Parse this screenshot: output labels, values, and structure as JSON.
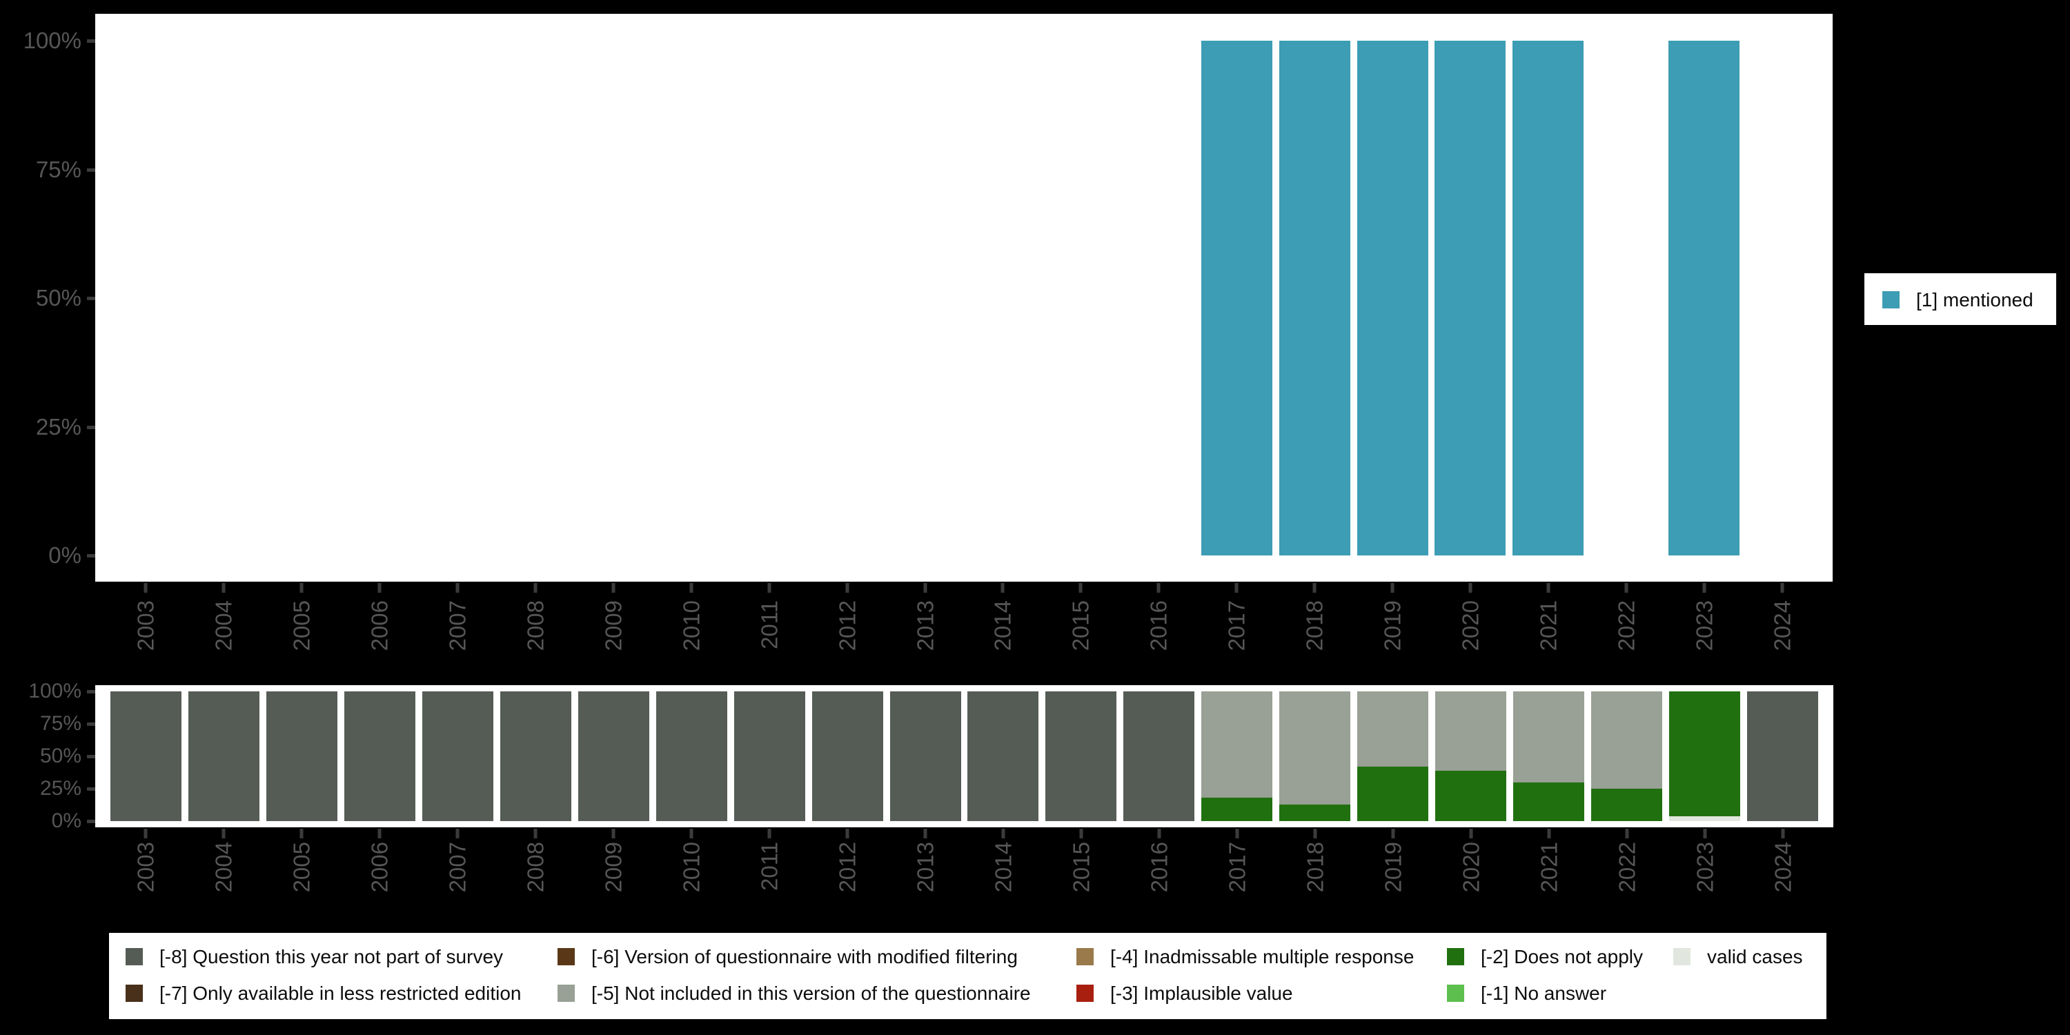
{
  "background_color": "#000000",
  "panel_color": "#ffffff",
  "axis_text_color": "#565656",
  "axis": {
    "years": [
      "2003",
      "2004",
      "2005",
      "2006",
      "2007",
      "2008",
      "2009",
      "2010",
      "2011",
      "2012",
      "2013",
      "2014",
      "2015",
      "2016",
      "2017",
      "2018",
      "2019",
      "2020",
      "2021",
      "2022",
      "2023",
      "2024"
    ],
    "y_tick_labels": [
      "0%",
      "25%",
      "50%",
      "75%",
      "100%"
    ]
  },
  "chart_data": [
    {
      "type": "bar",
      "title": "",
      "xlabel": "",
      "ylabel": "",
      "ylim": [
        0,
        100
      ],
      "grid": false,
      "legend_position": "right",
      "yticks": [
        "0%",
        "25%",
        "50%",
        "75%",
        "100%"
      ],
      "categories": [
        "2003",
        "2004",
        "2005",
        "2006",
        "2007",
        "2008",
        "2009",
        "2010",
        "2011",
        "2012",
        "2013",
        "2014",
        "2015",
        "2016",
        "2017",
        "2018",
        "2019",
        "2020",
        "2021",
        "2022",
        "2023",
        "2024"
      ],
      "series": [
        {
          "name": "[1] mentioned",
          "color": "#3c9db4",
          "values": [
            null,
            null,
            null,
            null,
            null,
            null,
            null,
            null,
            null,
            null,
            null,
            null,
            null,
            null,
            100,
            100,
            100,
            100,
            100,
            null,
            100,
            null
          ]
        }
      ]
    },
    {
      "type": "stacked-bar",
      "title": "",
      "xlabel": "",
      "ylabel": "",
      "ylim": [
        0,
        100
      ],
      "grid": false,
      "legend_position": "bottom",
      "yticks": [
        "0%",
        "25%",
        "50%",
        "75%",
        "100%"
      ],
      "categories": [
        "2003",
        "2004",
        "2005",
        "2006",
        "2007",
        "2008",
        "2009",
        "2010",
        "2011",
        "2012",
        "2013",
        "2014",
        "2015",
        "2016",
        "2017",
        "2018",
        "2019",
        "2020",
        "2021",
        "2022",
        "2023",
        "2024"
      ],
      "series": [
        {
          "name": "valid cases",
          "color": "#e1e7de",
          "values": [
            0,
            0,
            0,
            0,
            0,
            0,
            0,
            0,
            0,
            0,
            0,
            0,
            0,
            0,
            0,
            0,
            0,
            0,
            0,
            0,
            3.5,
            0
          ]
        },
        {
          "name": "[-2] Does not apply",
          "color": "#217010",
          "values": [
            0,
            0,
            0,
            0,
            0,
            0,
            0,
            0,
            0,
            0,
            0,
            0,
            0,
            0,
            18,
            13,
            42,
            39,
            30,
            25,
            96.5,
            0
          ]
        },
        {
          "name": "[-5] Not included in this version of the questionnaire",
          "color": "#99a095",
          "values": [
            0,
            0,
            0,
            0,
            0,
            0,
            0,
            0,
            0,
            0,
            0,
            0,
            0,
            0,
            82,
            87,
            58,
            61,
            70,
            75,
            0,
            0
          ]
        },
        {
          "name": "[-8] Question this year not part of survey",
          "color": "#555c55",
          "values": [
            100,
            100,
            100,
            100,
            100,
            100,
            100,
            100,
            100,
            100,
            100,
            100,
            100,
            100,
            0,
            0,
            0,
            0,
            0,
            0,
            0,
            100
          ]
        }
      ]
    }
  ],
  "legend_right": {
    "items": [
      {
        "label": "[1] mentioned",
        "color": "#3c9db4"
      }
    ]
  },
  "legend_bottom": {
    "columns": [
      [
        {
          "label": "[-8] Question this year not part of survey",
          "color": "#555c55"
        },
        {
          "label": "[-7] Only available in less restricted edition",
          "color": "#48301a"
        }
      ],
      [
        {
          "label": "[-6] Version of questionnaire with modified filtering",
          "color": "#5a3817"
        },
        {
          "label": "[-5] Not included in this version of the questionnaire",
          "color": "#99a095"
        }
      ],
      [
        {
          "label": "[-4] Inadmissable multiple response",
          "color": "#9a7a4b"
        },
        {
          "label": "[-3] Implausible value",
          "color": "#a81f10"
        }
      ],
      [
        {
          "label": "[-2] Does not apply",
          "color": "#217010"
        },
        {
          "label": "[-1] No answer",
          "color": "#5cbf4e"
        }
      ],
      [
        {
          "label": "valid cases",
          "color": "#e1e7de"
        }
      ]
    ]
  }
}
